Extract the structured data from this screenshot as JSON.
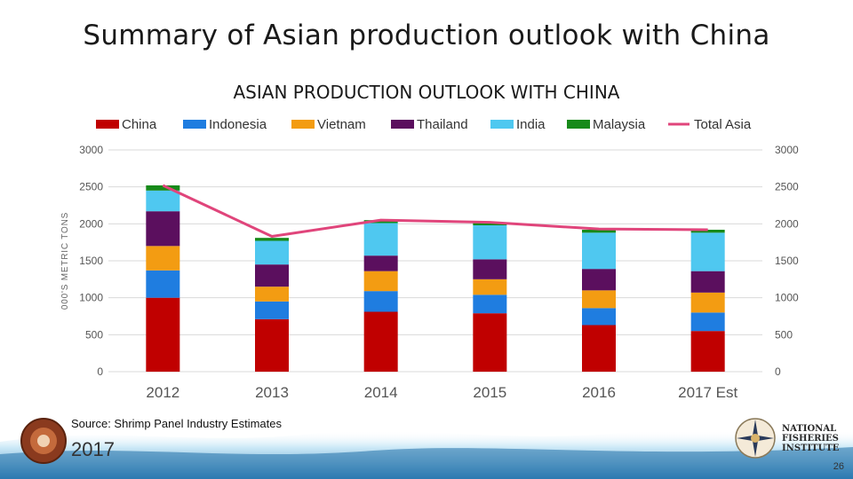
{
  "slide": {
    "title": "Summary of Asian production outlook with China",
    "source": "Source: Shrimp Panel Industry Estimates",
    "year": "2017",
    "page_number": "26",
    "org_name_lines": [
      "NATIONAL",
      "FISHERIES",
      "INSTITUTE"
    ],
    "conference_seal_text": "NFI GLOBAL SEAFOOD MARKET CONFERENCE"
  },
  "chart_data": {
    "type": "bar",
    "stacked": true,
    "title": "ASIAN PRODUCTION OUTLOOK WITH CHINA",
    "ylabel": "000'S METRIC TONS",
    "ylim": [
      0,
      3000
    ],
    "yticks": [
      "0",
      "500",
      "1000",
      "1500",
      "2000",
      "2500",
      "3000"
    ],
    "ytick_values": [
      0,
      500,
      1000,
      1500,
      2000,
      2500,
      3000
    ],
    "secondary_axis": true,
    "grid": true,
    "legend_position": "top",
    "categories": [
      "2012",
      "2013",
      "2014",
      "2015",
      "2016",
      "2017 Est"
    ],
    "series": [
      {
        "name": "China",
        "color": "#c00000",
        "values": [
          1000,
          710,
          810,
          790,
          630,
          550
        ]
      },
      {
        "name": "Indonesia",
        "color": "#1f7de0",
        "values": [
          370,
          240,
          280,
          250,
          230,
          250
        ]
      },
      {
        "name": "Vietnam",
        "color": "#f39c12",
        "values": [
          330,
          200,
          270,
          210,
          240,
          270
        ]
      },
      {
        "name": "Thailand",
        "color": "#5b0f5e",
        "values": [
          470,
          300,
          210,
          270,
          290,
          290
        ]
      },
      {
        "name": "India",
        "color": "#4fc8f0",
        "values": [
          280,
          320,
          440,
          460,
          490,
          520
        ]
      },
      {
        "name": "Malaysia",
        "color": "#178a1a",
        "values": [
          70,
          40,
          40,
          40,
          40,
          40
        ]
      }
    ],
    "line": {
      "name": "Total Asia",
      "color": "#e0457b",
      "values": [
        2520,
        1830,
        2050,
        2020,
        1930,
        1920
      ]
    }
  }
}
